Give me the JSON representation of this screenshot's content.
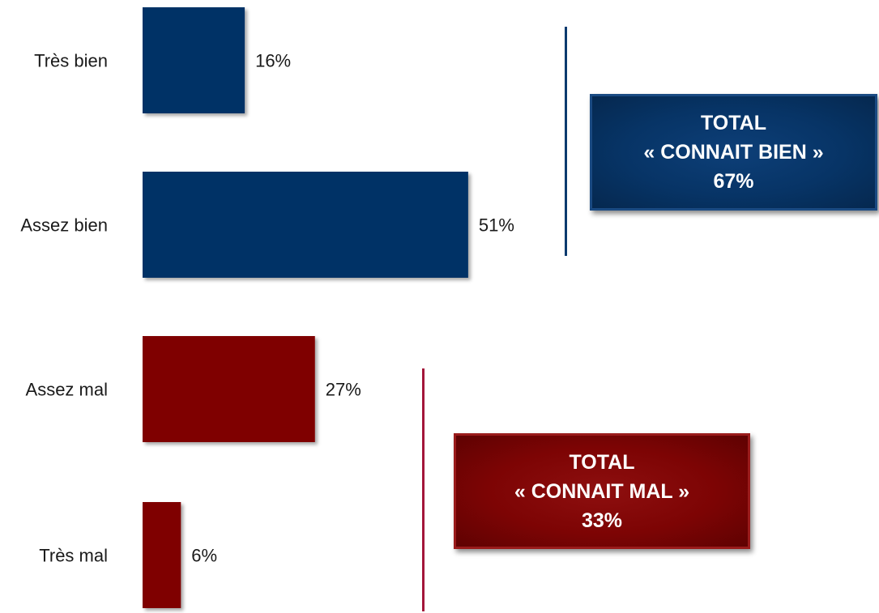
{
  "chart_data": {
    "type": "bar",
    "orientation": "horizontal",
    "categories": [
      "Très bien",
      "Assez bien",
      "Assez mal",
      "Très mal"
    ],
    "values": [
      16,
      51,
      27,
      6
    ],
    "value_labels": [
      "16%",
      "51%",
      "27%",
      "6%"
    ],
    "bar_colors": [
      "#003366",
      "#003366",
      "#7f0000",
      "#7f0000"
    ],
    "unit": "%"
  },
  "totals": {
    "good": {
      "line1": "TOTAL",
      "line2": "« CONNAIT BIEN »",
      "line3": "67%",
      "color": "#073466",
      "bracket_color": "#0b3a6e"
    },
    "bad": {
      "line1": "TOTAL",
      "line2": "« CONNAIT MAL »",
      "line3": "33%",
      "color": "#7d0404",
      "bracket_color": "#a3163a"
    }
  }
}
